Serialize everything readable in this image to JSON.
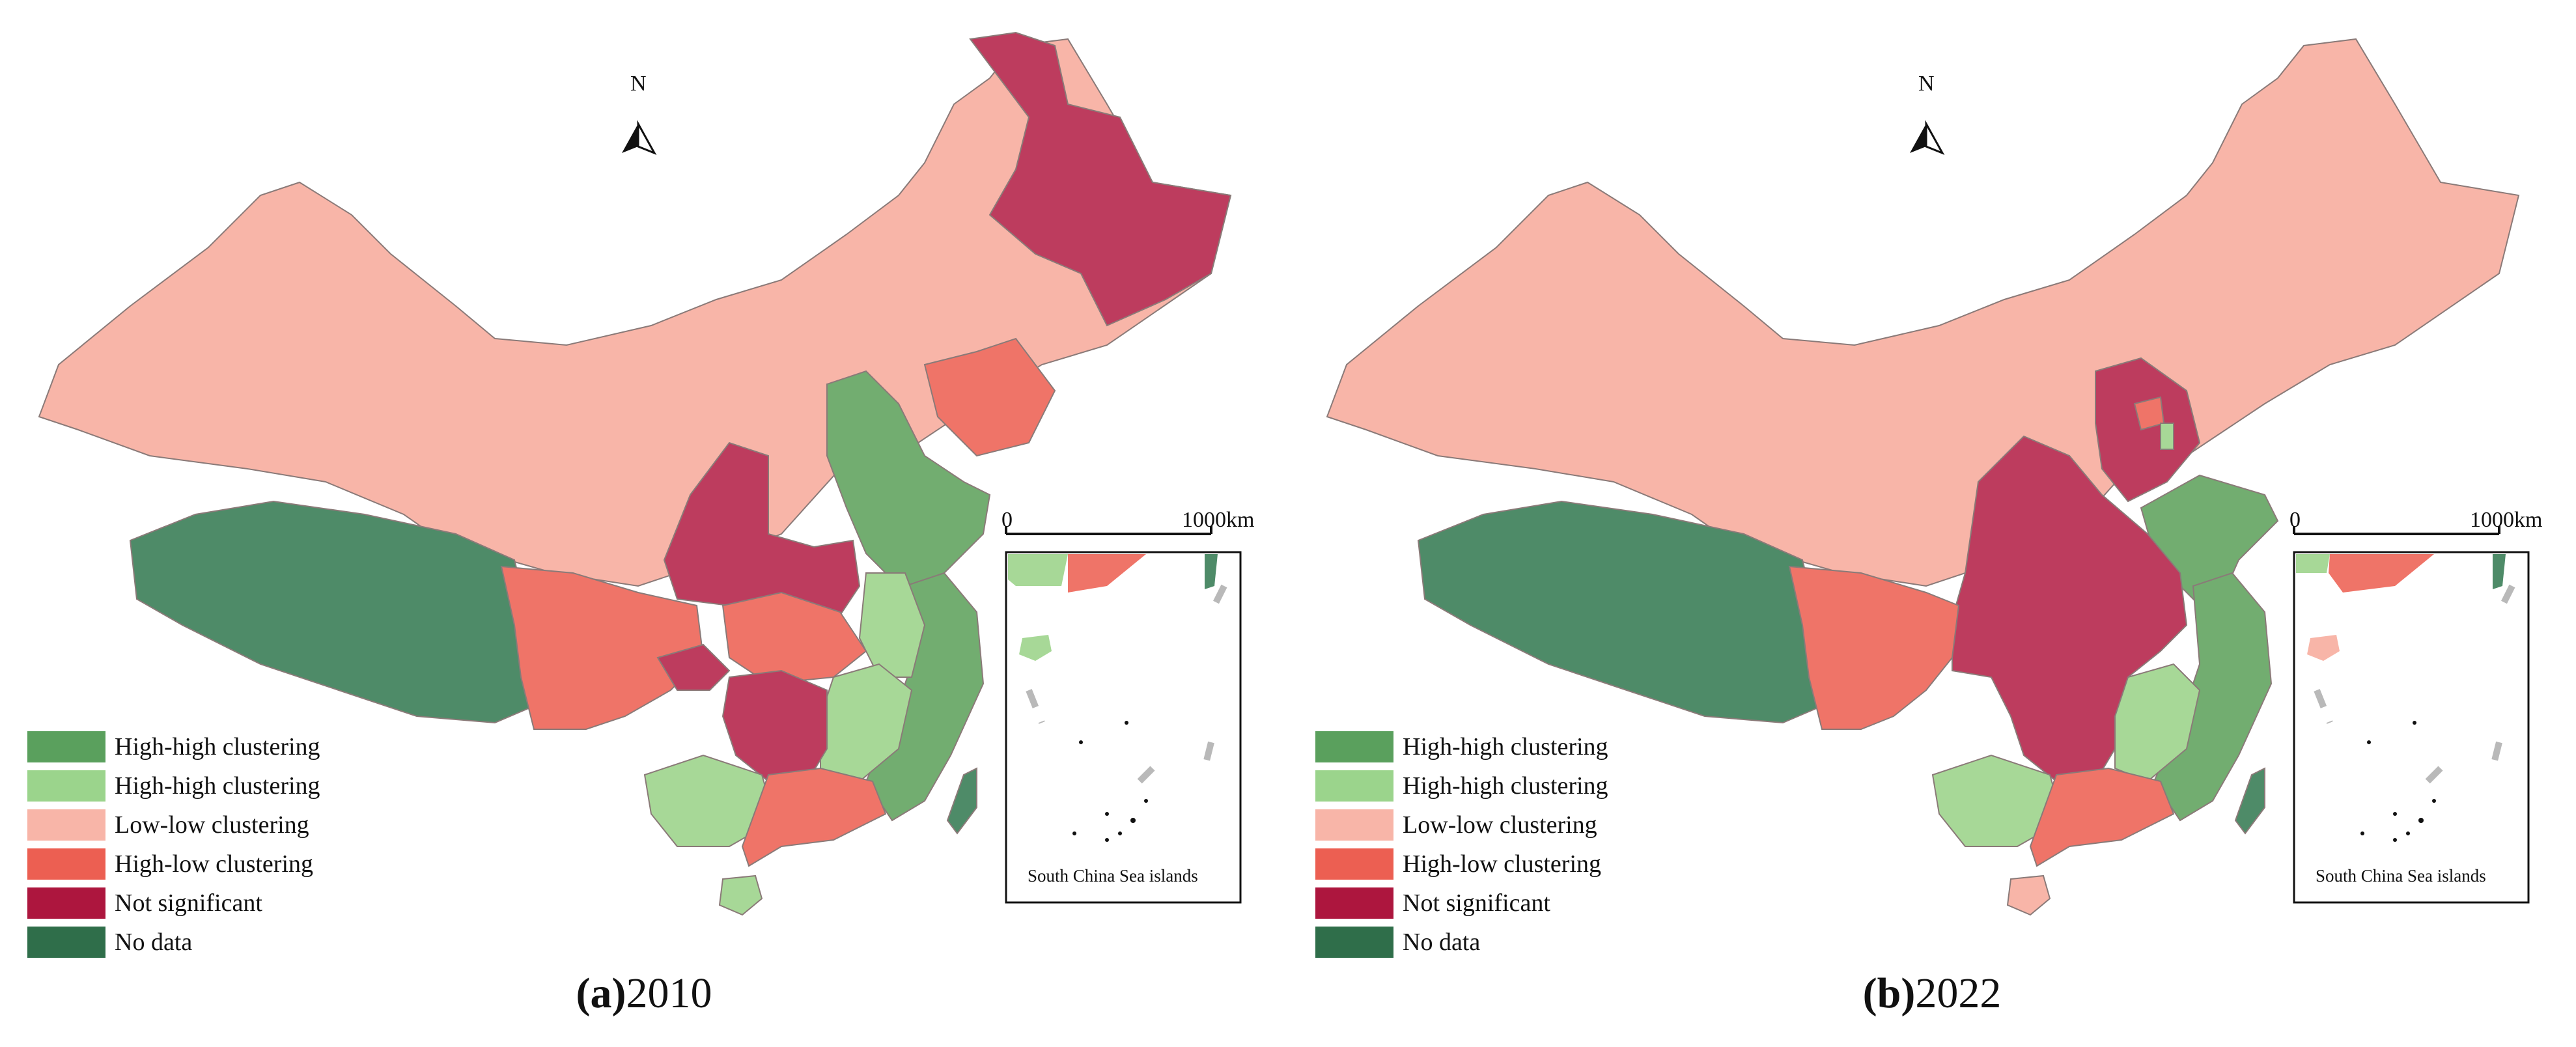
{
  "legend": [
    {
      "label": "High-high clustering",
      "color": "#5aa05d"
    },
    {
      "label": "High-high clustering",
      "color": "#9bd48c"
    },
    {
      "label": "Low-low clustering",
      "color": "#f8b5a8"
    },
    {
      "label": "High-low clustering",
      "color": "#ec5f52"
    },
    {
      "label": "Not significant",
      "color": "#ad163e"
    },
    {
      "label": "No data",
      "color": "#2f6e4a"
    }
  ],
  "north_label": "N",
  "scale": {
    "start": "0",
    "end": "1000km"
  },
  "inset_label": "South China Sea islands",
  "panels": [
    {
      "year": "2010",
      "letter": "(a)"
    },
    {
      "year": "2022",
      "letter": "(b)"
    }
  ]
}
